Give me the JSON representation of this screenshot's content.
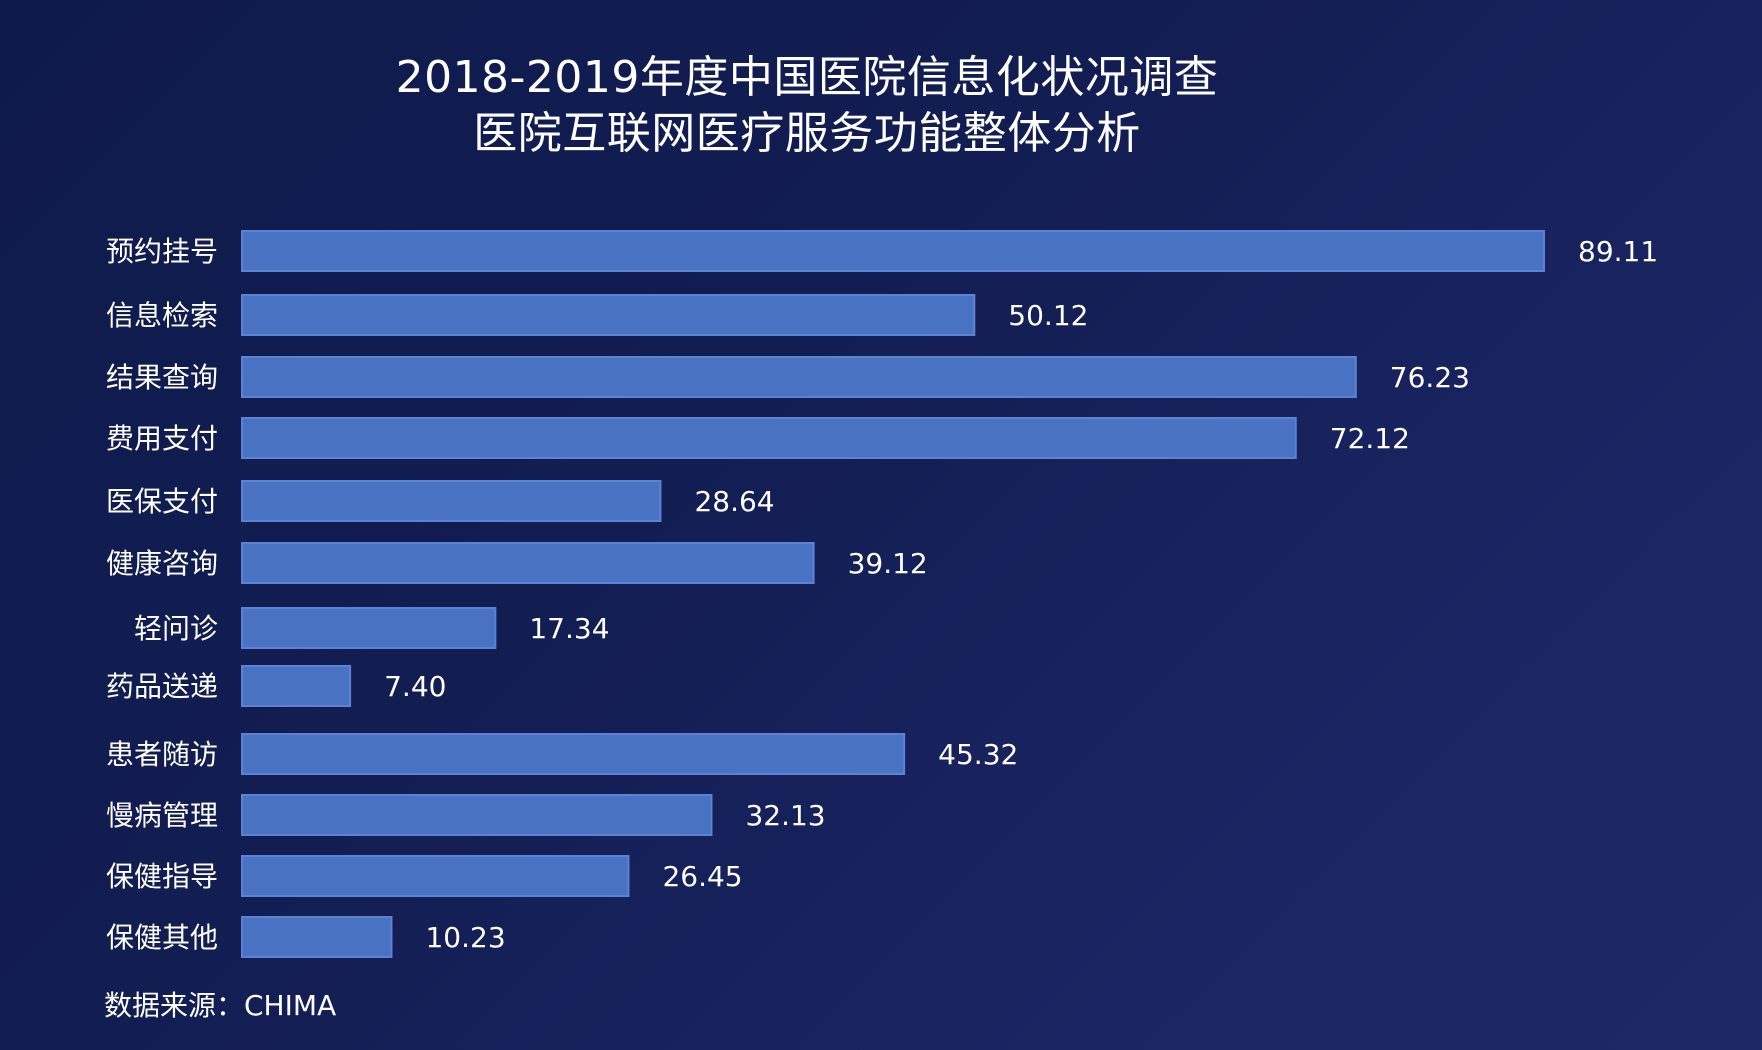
{
  "chart_data": {
    "type": "bar",
    "orientation": "horizontal",
    "title": "2018-2019年度中国医院信息化状况调查",
    "subtitle": "医院互联网医疗服务功能整体分析",
    "categories": [
      "预约挂号",
      "信息检索",
      "结果查询",
      "费用支付",
      "医保支付",
      "健康咨询",
      "轻问诊",
      "药品送递",
      "患者随访",
      "慢病管理",
      "保健指导",
      "保健其他"
    ],
    "values": [
      89.11,
      50.12,
      76.23,
      72.12,
      28.64,
      39.12,
      17.34,
      7.4,
      45.32,
      32.13,
      26.45,
      10.23
    ],
    "value_labels": [
      "89.11",
      "50.12",
      "76.23",
      "72.12",
      "28.64",
      "39.12",
      "17.34",
      "7.40",
      "45.32",
      "32.13",
      "26.45",
      "10.23"
    ],
    "xlim": [
      0,
      89.11
    ],
    "grid": false,
    "bar_color": "#4a72c2",
    "bar_border_color": "#5b82d4",
    "background_color": "#121d52",
    "text_color": "#ffffff"
  },
  "source": "数据来源：CHIMA"
}
